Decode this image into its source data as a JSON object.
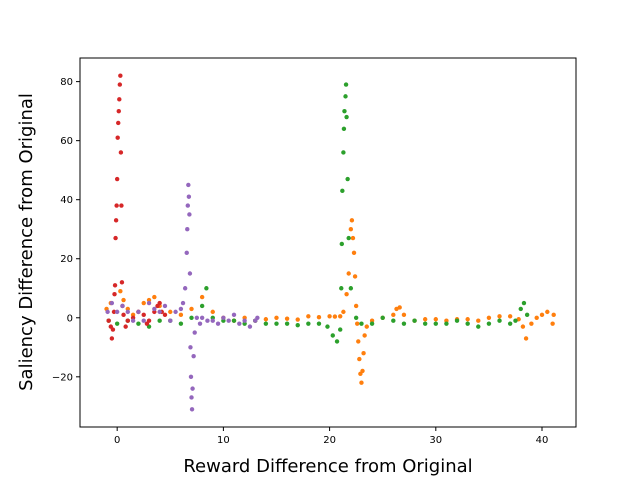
{
  "chart_data": {
    "type": "scatter",
    "title": "",
    "xlabel": "Reward Difference from Original",
    "ylabel": "Saliency Difference from Original",
    "xlim": [
      -3.5,
      43.2
    ],
    "ylim": [
      -37,
      88
    ],
    "xticks": [
      0,
      10,
      20,
      30,
      40
    ],
    "yticks": [
      -20,
      0,
      20,
      40,
      60,
      80
    ],
    "grid": false,
    "legend": "none",
    "series": [
      {
        "color": "#ff7f0e",
        "points": [
          [
            -1.0,
            3
          ],
          [
            -0.6,
            5
          ],
          [
            0.3,
            9
          ],
          [
            0.6,
            6
          ],
          [
            1.0,
            3
          ],
          [
            1.5,
            1
          ],
          [
            2.0,
            2
          ],
          [
            2.5,
            5
          ],
          [
            3.0,
            6
          ],
          [
            3.5,
            7
          ],
          [
            4.0,
            4
          ],
          [
            5.0,
            2
          ],
          [
            6.0,
            1
          ],
          [
            7.0,
            3
          ],
          [
            8.0,
            7
          ],
          [
            9.0,
            2
          ],
          [
            10.0,
            0
          ],
          [
            11.0,
            -1
          ],
          [
            12.0,
            0
          ],
          [
            13.0,
            -1
          ],
          [
            14.0,
            -0.5
          ],
          [
            15.0,
            0
          ],
          [
            16.0,
            -0.3
          ],
          [
            17.0,
            -0.6
          ],
          [
            18.0,
            0.5
          ],
          [
            19.0,
            0.2
          ],
          [
            20.0,
            0.5
          ],
          [
            20.5,
            0.4
          ],
          [
            21.0,
            0.5
          ],
          [
            21.3,
            2
          ],
          [
            21.6,
            8
          ],
          [
            21.8,
            15
          ],
          [
            22.0,
            30
          ],
          [
            22.1,
            33
          ],
          [
            22.2,
            27
          ],
          [
            22.3,
            22
          ],
          [
            22.4,
            14
          ],
          [
            22.5,
            4
          ],
          [
            22.6,
            -2
          ],
          [
            22.7,
            -8
          ],
          [
            22.8,
            -14
          ],
          [
            22.9,
            -19
          ],
          [
            23.0,
            -22
          ],
          [
            23.1,
            -18
          ],
          [
            23.2,
            -12
          ],
          [
            23.3,
            -6
          ],
          [
            23.5,
            -3
          ],
          [
            24.0,
            -1
          ],
          [
            25.0,
            0
          ],
          [
            26.0,
            1
          ],
          [
            26.3,
            3
          ],
          [
            26.6,
            3.5
          ],
          [
            27.0,
            1
          ],
          [
            28.0,
            -1
          ],
          [
            29.0,
            -0.5
          ],
          [
            30.0,
            -0.5
          ],
          [
            31.0,
            -1
          ],
          [
            32.0,
            -0.5
          ],
          [
            33.0,
            -0.5
          ],
          [
            34.0,
            -1
          ],
          [
            35.0,
            0
          ],
          [
            36.0,
            0.5
          ],
          [
            37.0,
            0.5
          ],
          [
            37.8,
            -0.5
          ],
          [
            38.2,
            -3
          ],
          [
            38.5,
            -7
          ],
          [
            39.0,
            -2
          ],
          [
            39.5,
            0
          ],
          [
            40.0,
            1
          ],
          [
            40.5,
            2
          ],
          [
            41.0,
            -2
          ],
          [
            41.1,
            1
          ]
        ]
      },
      {
        "color": "#2ca02c",
        "points": [
          [
            -0.8,
            -1
          ],
          [
            0.0,
            -2
          ],
          [
            1.0,
            -1
          ],
          [
            2.0,
            -2
          ],
          [
            3.0,
            -3
          ],
          [
            4.0,
            -1
          ],
          [
            5.0,
            -1
          ],
          [
            6.0,
            -2
          ],
          [
            7.0,
            0
          ],
          [
            8.0,
            4
          ],
          [
            8.4,
            10
          ],
          [
            9.0,
            0
          ],
          [
            10.0,
            -1
          ],
          [
            11.0,
            -1
          ],
          [
            12.0,
            -2
          ],
          [
            13.0,
            -1
          ],
          [
            14.0,
            -2
          ],
          [
            15.0,
            -2
          ],
          [
            16.0,
            -2
          ],
          [
            17.0,
            -2.5
          ],
          [
            18.0,
            -2
          ],
          [
            19.0,
            -2
          ],
          [
            19.8,
            -3
          ],
          [
            20.3,
            -6
          ],
          [
            20.7,
            -8
          ],
          [
            21.0,
            -4
          ],
          [
            21.1,
            10
          ],
          [
            21.15,
            25
          ],
          [
            21.2,
            43
          ],
          [
            21.3,
            56
          ],
          [
            21.35,
            64
          ],
          [
            21.4,
            70
          ],
          [
            21.5,
            75
          ],
          [
            21.55,
            79
          ],
          [
            21.6,
            68
          ],
          [
            21.7,
            47
          ],
          [
            21.8,
            27
          ],
          [
            22.0,
            10
          ],
          [
            22.5,
            0
          ],
          [
            23.0,
            -2
          ],
          [
            24.0,
            -2
          ],
          [
            25.0,
            0
          ],
          [
            26.0,
            -1
          ],
          [
            27.0,
            -2
          ],
          [
            28.0,
            -1
          ],
          [
            29.0,
            -2
          ],
          [
            30.0,
            -2
          ],
          [
            31.0,
            -2
          ],
          [
            32.0,
            -1
          ],
          [
            33.0,
            -2
          ],
          [
            34.0,
            -3
          ],
          [
            35.0,
            -2
          ],
          [
            36.0,
            -1
          ],
          [
            37.0,
            -2
          ],
          [
            37.5,
            -1
          ],
          [
            38.0,
            3
          ],
          [
            38.3,
            5
          ],
          [
            38.6,
            1
          ]
        ]
      },
      {
        "color": "#d62728",
        "points": [
          [
            -0.8,
            -1
          ],
          [
            -0.6,
            -3
          ],
          [
            -0.5,
            -7
          ],
          [
            -0.4,
            -4
          ],
          [
            -0.3,
            2
          ],
          [
            -0.25,
            8
          ],
          [
            -0.2,
            11
          ],
          [
            -0.15,
            27
          ],
          [
            -0.1,
            33
          ],
          [
            -0.05,
            38
          ],
          [
            0.0,
            47
          ],
          [
            0.05,
            61
          ],
          [
            0.1,
            66
          ],
          [
            0.15,
            70
          ],
          [
            0.2,
            74
          ],
          [
            0.25,
            79
          ],
          [
            0.3,
            82
          ],
          [
            0.35,
            56
          ],
          [
            0.4,
            38
          ],
          [
            0.45,
            12
          ],
          [
            0.5,
            4
          ],
          [
            0.6,
            1
          ],
          [
            0.8,
            -3
          ],
          [
            1.0,
            -1
          ],
          [
            1.5,
            0
          ],
          [
            2.0,
            2
          ],
          [
            2.5,
            1
          ],
          [
            2.8,
            -2
          ],
          [
            3.0,
            -1
          ],
          [
            3.5,
            2
          ],
          [
            3.8,
            4
          ],
          [
            4.0,
            5
          ],
          [
            4.2,
            2
          ],
          [
            4.5,
            1
          ]
        ]
      },
      {
        "color": "#9467bd",
        "points": [
          [
            -0.9,
            2
          ],
          [
            -0.5,
            5
          ],
          [
            0.0,
            2
          ],
          [
            0.5,
            4
          ],
          [
            1.0,
            2
          ],
          [
            1.5,
            -1
          ],
          [
            2.0,
            2
          ],
          [
            2.5,
            -1
          ],
          [
            3.0,
            5
          ],
          [
            3.5,
            3
          ],
          [
            4.0,
            2
          ],
          [
            4.5,
            4
          ],
          [
            5.0,
            -1
          ],
          [
            5.5,
            2
          ],
          [
            6.0,
            3
          ],
          [
            6.2,
            5
          ],
          [
            6.4,
            10
          ],
          [
            6.55,
            22
          ],
          [
            6.6,
            30
          ],
          [
            6.65,
            38
          ],
          [
            6.7,
            45
          ],
          [
            6.75,
            41
          ],
          [
            6.8,
            35
          ],
          [
            6.85,
            15
          ],
          [
            6.9,
            -10
          ],
          [
            6.95,
            -20
          ],
          [
            7.0,
            -27
          ],
          [
            7.05,
            -31
          ],
          [
            7.1,
            -24
          ],
          [
            7.2,
            -13
          ],
          [
            7.3,
            -5
          ],
          [
            7.5,
            0
          ],
          [
            7.8,
            -2
          ],
          [
            8.0,
            0
          ],
          [
            8.5,
            -1
          ],
          [
            9.0,
            -1
          ],
          [
            9.5,
            -2
          ],
          [
            10.0,
            0
          ],
          [
            10.5,
            -1
          ],
          [
            11.0,
            1
          ],
          [
            11.5,
            -2
          ],
          [
            12.0,
            -1
          ],
          [
            12.5,
            -3
          ],
          [
            13.0,
            -1
          ],
          [
            13.2,
            0
          ]
        ]
      }
    ]
  }
}
